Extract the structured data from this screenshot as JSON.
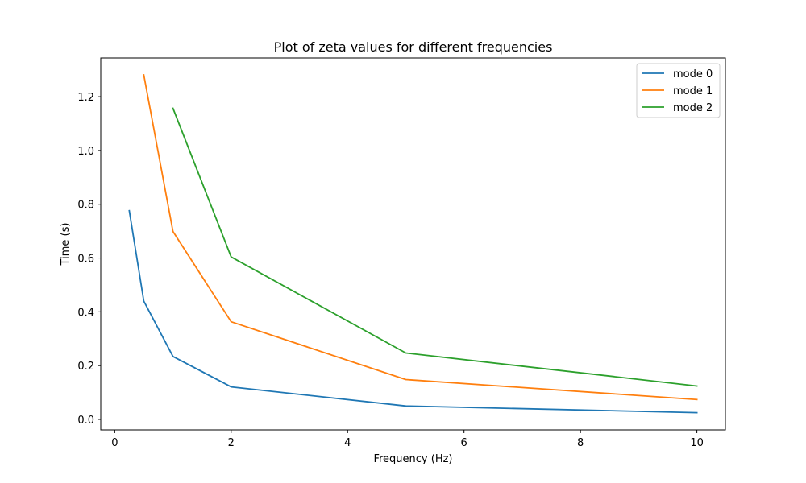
{
  "chart_data": {
    "type": "line",
    "title": "Plot of zeta values for different frequencies",
    "xlabel": "Frequency (Hz)",
    "ylabel": "Time (s)",
    "xlim": [
      -0.24,
      10.49
    ],
    "ylim": [
      -0.039,
      1.344
    ],
    "xticks": [
      0,
      2,
      4,
      6,
      8,
      10
    ],
    "yticks": [
      0.0,
      0.2,
      0.4,
      0.6,
      0.8,
      1.0,
      1.2
    ],
    "grid": false,
    "legend_position": "top-right",
    "series": [
      {
        "name": "mode 0",
        "color": "#1f77b4",
        "x": [
          0.25,
          0.5,
          1,
          2,
          5,
          10
        ],
        "y": [
          0.776,
          0.44,
          0.234,
          0.121,
          0.05,
          0.025
        ]
      },
      {
        "name": "mode 1",
        "color": "#ff7f0e",
        "x": [
          0.5,
          1,
          2,
          5,
          10
        ],
        "y": [
          1.281,
          0.699,
          0.363,
          0.148,
          0.074
        ]
      },
      {
        "name": "mode 2",
        "color": "#2ca02c",
        "x": [
          1,
          2,
          5,
          10
        ],
        "y": [
          1.157,
          0.604,
          0.247,
          0.124
        ]
      }
    ]
  }
}
